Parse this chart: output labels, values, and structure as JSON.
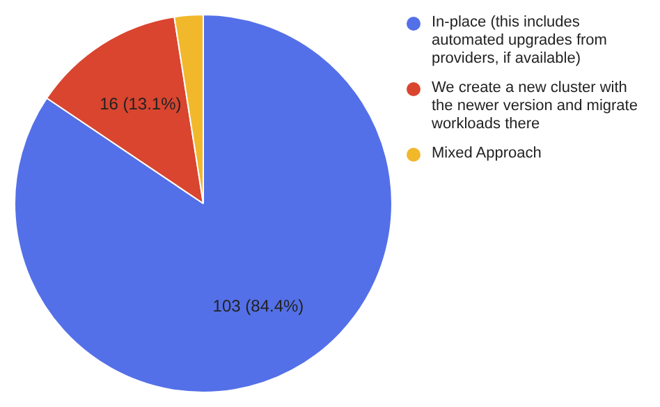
{
  "chart_data": {
    "type": "pie",
    "categories": [
      "In-place (this includes automated upgrades from providers, if available)",
      "We create a new cluster with the newer version and migrate workloads there",
      "Mixed Approach"
    ],
    "values": [
      103,
      16,
      3
    ],
    "colors": [
      "#5470e8",
      "#d9452f",
      "#f1b82c"
    ],
    "value_labels": [
      "103 (84.4%)",
      "16 (13.1%)",
      null
    ],
    "legend": "right"
  }
}
